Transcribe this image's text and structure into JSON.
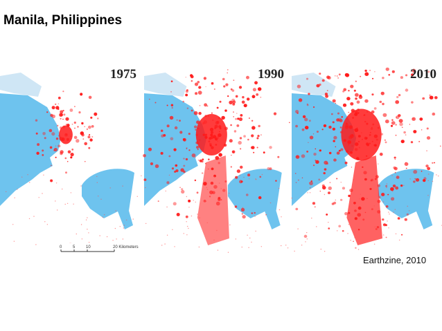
{
  "title": "Manila, Philippines",
  "maps": [
    {
      "year": "1975"
    },
    {
      "year": "1990"
    },
    {
      "year": "2010"
    }
  ],
  "scale_bar": {
    "labels": [
      "0",
      "5",
      "10",
      "20 Kilometers"
    ]
  },
  "credit": "Earthzine, 2010"
}
